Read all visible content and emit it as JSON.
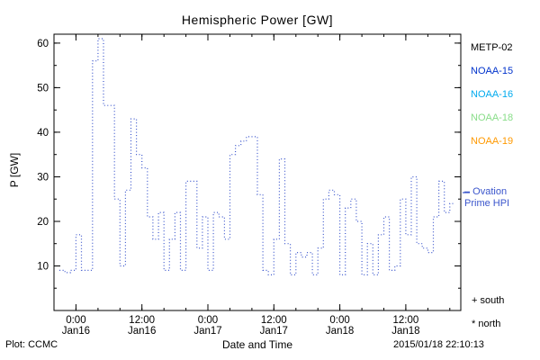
{
  "title": "Hemispheric Power [GW]",
  "x_axis_label": "Date and Time",
  "y_axis_label": "P [GW]",
  "footer": {
    "plot_source": "Plot: CCMC",
    "timestamp": "2015/01/18 22:10:13"
  },
  "legend": {
    "satellites": [
      {
        "label": "METP-02",
        "color": "#000000"
      },
      {
        "label": "NOAA-15",
        "color": "#0033cc"
      },
      {
        "label": "NOAA-16",
        "color": "#00aaee"
      },
      {
        "label": "NOAA-18",
        "color": "#88dd88"
      },
      {
        "label": "NOAA-19",
        "color": "#ff9900"
      }
    ],
    "line_label_line1": "– Ovation",
    "line_label_line2": "Prime HPI",
    "line_label_color": "#3a55cc",
    "south_label": "+ south",
    "north_label": "* north"
  },
  "chart_data": {
    "type": "line",
    "line_style": "dotted-step",
    "color": "#3a55cc",
    "title": "Hemispheric Power [GW]",
    "xlabel": "Date and Time",
    "ylabel": "P [GW]",
    "ylim": [
      0,
      62
    ],
    "xlim_hours_from_jan16_0000": [
      -4,
      70
    ],
    "yticks": [
      10,
      20,
      30,
      40,
      50,
      60
    ],
    "xticks": [
      {
        "hour": 0,
        "time": "0:00",
        "date": "Jan16"
      },
      {
        "hour": 12,
        "time": "12:00",
        "date": "Jan16"
      },
      {
        "hour": 24,
        "time": "0:00",
        "date": "Jan17"
      },
      {
        "hour": 36,
        "time": "12:00",
        "date": "Jan17"
      },
      {
        "hour": 48,
        "time": "0:00",
        "date": "Jan18"
      },
      {
        "hour": 60,
        "time": "12:00",
        "date": "Jan18"
      }
    ],
    "x_hours_from_jan16_0000": [
      -3,
      -2,
      -1,
      0,
      1,
      2,
      3,
      4,
      5,
      6,
      7,
      8,
      9,
      10,
      11,
      12,
      13,
      14,
      15,
      16,
      17,
      18,
      19,
      20,
      21,
      22,
      23,
      24,
      25,
      26,
      27,
      28,
      29,
      30,
      31,
      32,
      33,
      34,
      35,
      36,
      37,
      38,
      39,
      40,
      41,
      42,
      43,
      44,
      45,
      46,
      47,
      48,
      49,
      50,
      51,
      52,
      53,
      54,
      55,
      56,
      57,
      58,
      59,
      60,
      61,
      62,
      63,
      64,
      65,
      66,
      67,
      68
    ],
    "values": [
      9,
      8.5,
      9,
      17,
      9,
      9,
      56,
      61,
      46,
      46,
      25,
      10,
      27,
      43,
      35,
      32,
      21,
      16,
      22,
      9,
      16,
      22,
      9,
      29,
      29,
      14,
      21,
      9,
      22,
      21,
      16,
      35,
      37,
      38,
      39,
      39,
      26,
      9,
      8,
      16,
      34,
      15,
      8,
      13,
      12,
      13,
      8,
      14,
      25,
      27,
      26,
      8,
      23,
      25,
      20,
      8,
      15,
      8,
      17,
      21,
      9,
      10,
      25,
      17,
      30,
      15,
      14,
      13,
      21,
      29,
      22,
      24
    ]
  }
}
